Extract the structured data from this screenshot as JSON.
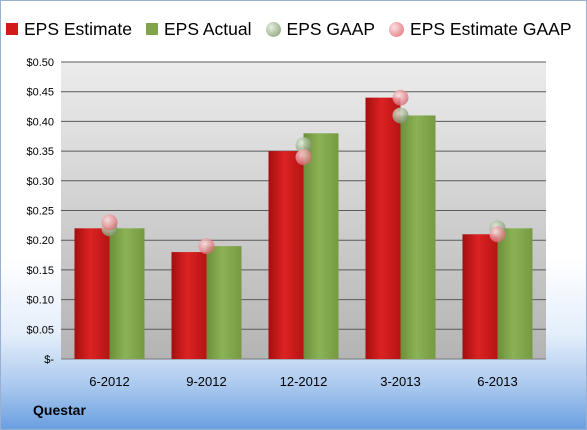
{
  "chart_data": {
    "type": "bar",
    "categories": [
      "6-2012",
      "9-2012",
      "12-2012",
      "3-2013",
      "6-2013"
    ],
    "series": [
      {
        "name": "EPS Estimate",
        "kind": "bar",
        "color": "#d21a1a",
        "values": [
          0.22,
          0.18,
          0.35,
          0.44,
          0.21
        ]
      },
      {
        "name": "EPS Actual",
        "kind": "bar",
        "color": "#7fa44a",
        "values": [
          0.22,
          0.19,
          0.38,
          0.41,
          0.22
        ]
      },
      {
        "name": "EPS GAAP",
        "kind": "marker",
        "color": "#a4b896",
        "values": [
          0.22,
          null,
          0.36,
          0.41,
          0.22
        ]
      },
      {
        "name": "EPS Estimate GAAP",
        "kind": "marker",
        "color": "#e88c92",
        "values": [
          0.23,
          0.19,
          0.34,
          0.44,
          0.21
        ]
      }
    ],
    "ylim": [
      0,
      0.5
    ],
    "yticks": [
      0,
      0.05,
      0.1,
      0.15,
      0.2,
      0.25,
      0.3,
      0.35,
      0.4,
      0.45,
      0.5
    ],
    "ytick_labels": [
      "$-",
      "$0.05",
      "$0.10",
      "$0.15",
      "$0.20",
      "$0.25",
      "$0.30",
      "$0.35",
      "$0.40",
      "$0.45",
      "$0.50"
    ],
    "grid": true,
    "legend": "top"
  },
  "company": "Questar"
}
